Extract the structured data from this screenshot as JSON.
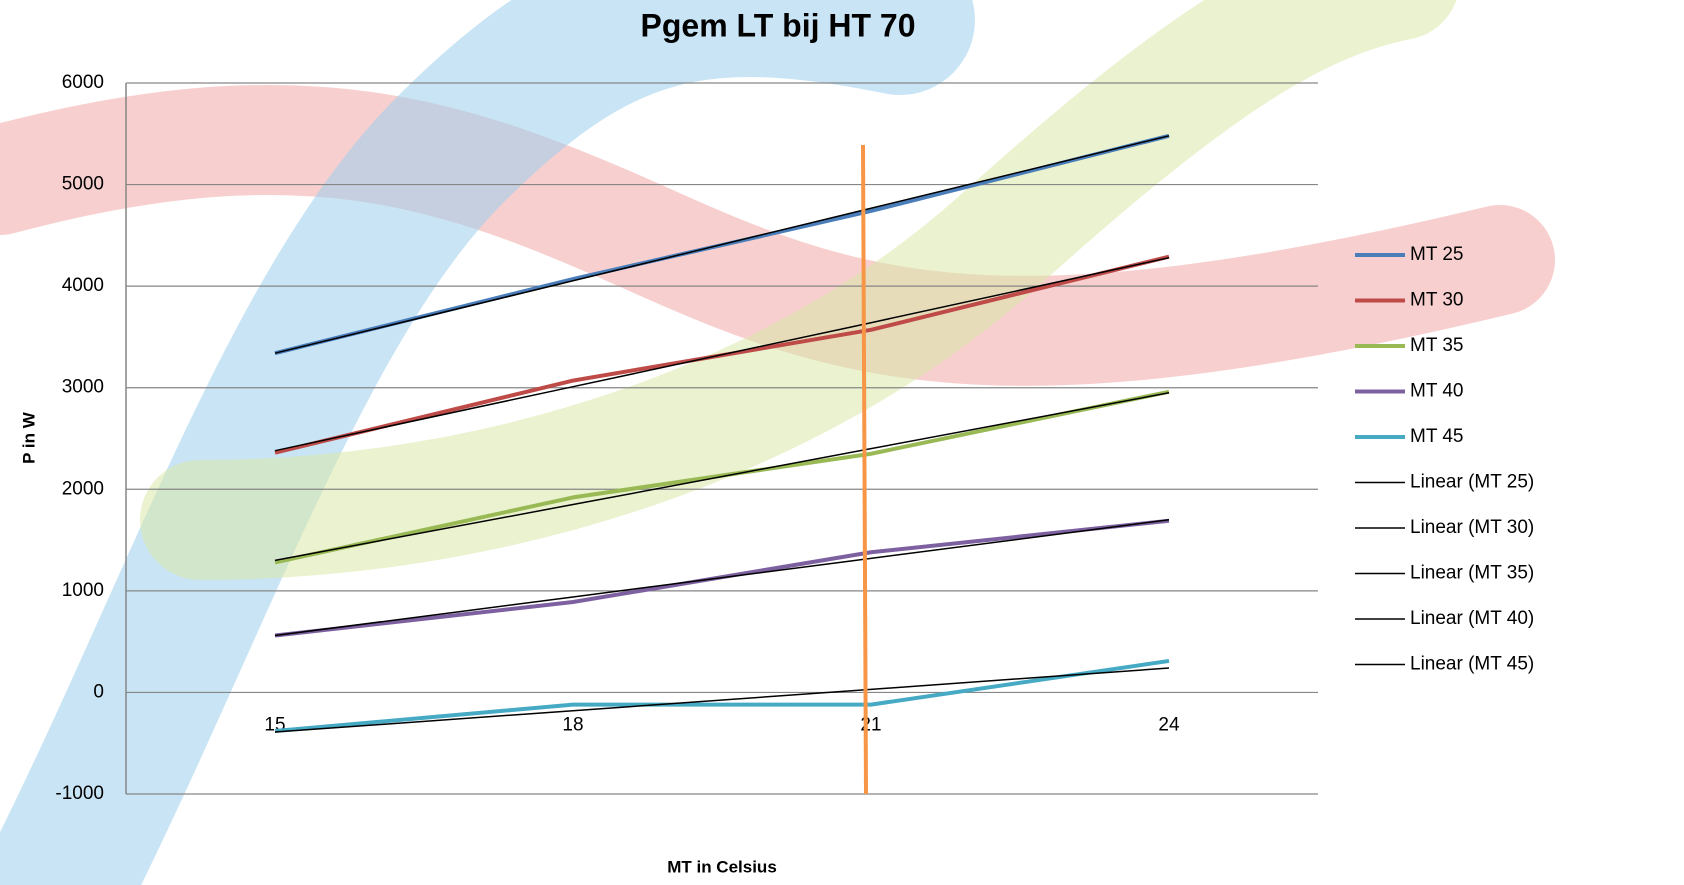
{
  "chart_data": {
    "type": "line",
    "title": "Pgem LT bij HT 70",
    "x_label": "MT in Celsius",
    "y_label": "P in W",
    "categories": [
      "15",
      "18",
      "21",
      "24"
    ],
    "ylim": [
      -1000,
      6000
    ],
    "yticks": [
      -1000,
      0,
      1000,
      2000,
      3000,
      4000,
      5000,
      6000
    ],
    "grid": true,
    "legend": "right",
    "series": [
      {
        "name": "MT 25",
        "color": "#4a7ebb",
        "width": 4,
        "values": [
          3340,
          4070,
          4740,
          5480
        ]
      },
      {
        "name": "MT 30",
        "color": "#be4b48",
        "width": 4,
        "values": [
          2360,
          3070,
          3570,
          4290
        ]
      },
      {
        "name": "MT 35",
        "color": "#98b954",
        "width": 4,
        "values": [
          1280,
          1920,
          2350,
          2960
        ]
      },
      {
        "name": "MT 40",
        "color": "#7d60a0",
        "width": 4,
        "values": [
          560,
          890,
          1380,
          1690
        ]
      },
      {
        "name": "MT 45",
        "color": "#46aac5",
        "width": 4,
        "values": [
          -380,
          -120,
          -120,
          310
        ]
      },
      {
        "name": "Linear (MT 25)",
        "color": "#000000",
        "width": 1.5,
        "values": [
          3340,
          4053,
          4767,
          5480
        ]
      },
      {
        "name": "Linear (MT 30)",
        "color": "#000000",
        "width": 1.5,
        "values": [
          2380,
          3010,
          3640,
          4280
        ]
      },
      {
        "name": "Linear (MT 35)",
        "color": "#000000",
        "width": 1.5,
        "values": [
          1300,
          1850,
          2400,
          2950
        ]
      },
      {
        "name": "Linear (MT 40)",
        "color": "#000000",
        "width": 1.5,
        "values": [
          560,
          940,
          1320,
          1700
        ]
      },
      {
        "name": "Linear (MT 45)",
        "color": "#000000",
        "width": 1.5,
        "values": [
          -390,
          -180,
          30,
          240
        ]
      }
    ]
  }
}
